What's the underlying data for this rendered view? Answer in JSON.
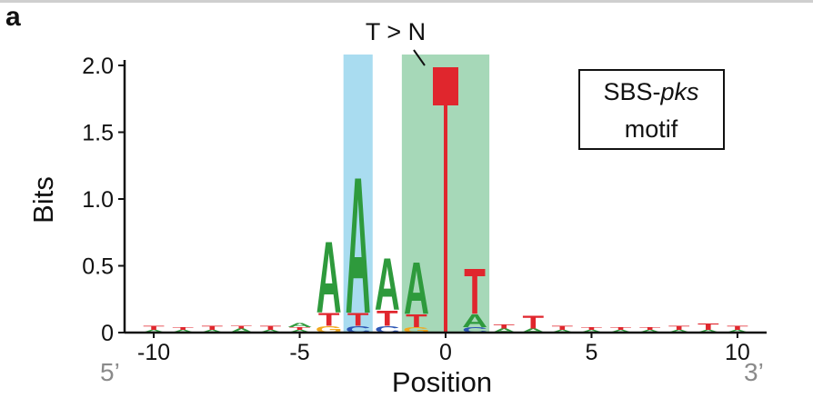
{
  "panel_letter": "a",
  "chart_data": {
    "type": "sequence-logo",
    "xlabel": "Position",
    "ylabel": "Bits",
    "ylim": [
      0,
      2.0
    ],
    "xlim": [
      -11,
      11
    ],
    "y_ticks": [
      "0",
      "0.5",
      "1.0",
      "1.5",
      "2.0"
    ],
    "x_ticks": [
      "-10",
      "-5",
      "0",
      "5",
      "10"
    ],
    "x_tick_values": [
      -10,
      -5,
      0,
      5,
      10
    ],
    "end_labels": {
      "left": "5’",
      "right": "3’"
    },
    "annotation": "T > N",
    "box_line1": "SBS-",
    "box_line1_italic": "pks",
    "box_line2": "motif",
    "highlights": [
      {
        "position": -3,
        "color": "#a9dcf0"
      },
      {
        "position": 0,
        "span": [
          -1.5,
          1.5
        ],
        "color": "#a6d8b8"
      }
    ],
    "letter_colors": {
      "A": "#2e9a3c",
      "T": "#e0262d",
      "C": "#2c55b4",
      "G": "#f2a81c"
    },
    "mutated_base": {
      "position": 0,
      "bits": 2.0,
      "color": "#e0262d"
    },
    "positions": [
      {
        "pos": -4,
        "letters": [
          {
            "l": "G",
            "bits": 0.05
          },
          {
            "l": "T",
            "bits": 0.1
          },
          {
            "l": "A",
            "bits": 0.55
          }
        ]
      },
      {
        "pos": -3,
        "letters": [
          {
            "l": "C",
            "bits": 0.05
          },
          {
            "l": "T",
            "bits": 0.1
          },
          {
            "l": "A",
            "bits": 1.05
          }
        ]
      },
      {
        "pos": -2,
        "letters": [
          {
            "l": "C",
            "bits": 0.05
          },
          {
            "l": "T",
            "bits": 0.12
          },
          {
            "l": "A",
            "bits": 0.4
          }
        ]
      },
      {
        "pos": -1,
        "letters": [
          {
            "l": "G",
            "bits": 0.04
          },
          {
            "l": "T",
            "bits": 0.1
          },
          {
            "l": "A",
            "bits": 0.4
          }
        ]
      },
      {
        "pos": 1,
        "letters": [
          {
            "l": "C",
            "bits": 0.04
          },
          {
            "l": "A",
            "bits": 0.1
          },
          {
            "l": "T",
            "bits": 0.35
          }
        ]
      },
      {
        "pos": 2,
        "letters": [
          {
            "l": "A",
            "bits": 0.03
          },
          {
            "l": "T",
            "bits": 0.03
          }
        ]
      },
      {
        "pos": 3,
        "letters": [
          {
            "l": "A",
            "bits": 0.03
          },
          {
            "l": "T",
            "bits": 0.1
          }
        ]
      },
      {
        "pos": 4,
        "letters": [
          {
            "l": "A",
            "bits": 0.02
          },
          {
            "l": "T",
            "bits": 0.03
          }
        ]
      },
      {
        "pos": 5,
        "letters": [
          {
            "l": "A",
            "bits": 0.02
          },
          {
            "l": "T",
            "bits": 0.02
          }
        ]
      },
      {
        "pos": 6,
        "letters": [
          {
            "l": "A",
            "bits": 0.02
          },
          {
            "l": "T",
            "bits": 0.02
          }
        ]
      },
      {
        "pos": 7,
        "letters": [
          {
            "l": "A",
            "bits": 0.02
          },
          {
            "l": "T",
            "bits": 0.02
          }
        ]
      },
      {
        "pos": 8,
        "letters": [
          {
            "l": "A",
            "bits": 0.02
          },
          {
            "l": "T",
            "bits": 0.03
          }
        ]
      },
      {
        "pos": 9,
        "letters": [
          {
            "l": "A",
            "bits": 0.02
          },
          {
            "l": "T",
            "bits": 0.05
          }
        ]
      },
      {
        "pos": 10,
        "letters": [
          {
            "l": "A",
            "bits": 0.02
          },
          {
            "l": "T",
            "bits": 0.03
          }
        ]
      },
      {
        "pos": -5,
        "letters": [
          {
            "l": "A",
            "bits": 0.02
          },
          {
            "l": "T",
            "bits": 0.02
          },
          {
            "l": "A",
            "bits": 0.03
          }
        ]
      },
      {
        "pos": -6,
        "letters": [
          {
            "l": "A",
            "bits": 0.02
          },
          {
            "l": "T",
            "bits": 0.03
          }
        ]
      },
      {
        "pos": -7,
        "letters": [
          {
            "l": "A",
            "bits": 0.03
          },
          {
            "l": "T",
            "bits": 0.02
          }
        ]
      },
      {
        "pos": -8,
        "letters": [
          {
            "l": "A",
            "bits": 0.02
          },
          {
            "l": "T",
            "bits": 0.03
          }
        ]
      },
      {
        "pos": -9,
        "letters": [
          {
            "l": "A",
            "bits": 0.02
          },
          {
            "l": "T",
            "bits": 0.02
          }
        ]
      },
      {
        "pos": -10,
        "letters": [
          {
            "l": "A",
            "bits": 0.02
          },
          {
            "l": "T",
            "bits": 0.03
          }
        ]
      }
    ]
  }
}
